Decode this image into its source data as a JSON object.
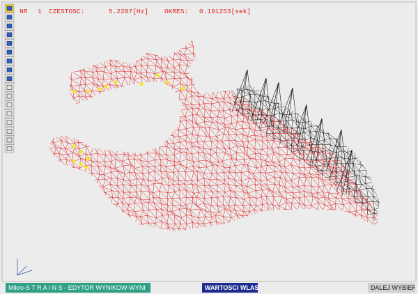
{
  "header": {
    "nr_label": "NR",
    "nr_value": "1",
    "freq_label": "CZESTOSC:",
    "freq_value": "5.2287[Hz]",
    "period_label": "OKRES:",
    "period_value": "0.191253[sek]"
  },
  "status_bar": {
    "program": "Mikro-S T R A I N S - EDYTOR WYNIKOW-WYNI",
    "mode": "WARTOSCI WLASNE",
    "prompt": "DALEJ WYBIERZ"
  }
}
